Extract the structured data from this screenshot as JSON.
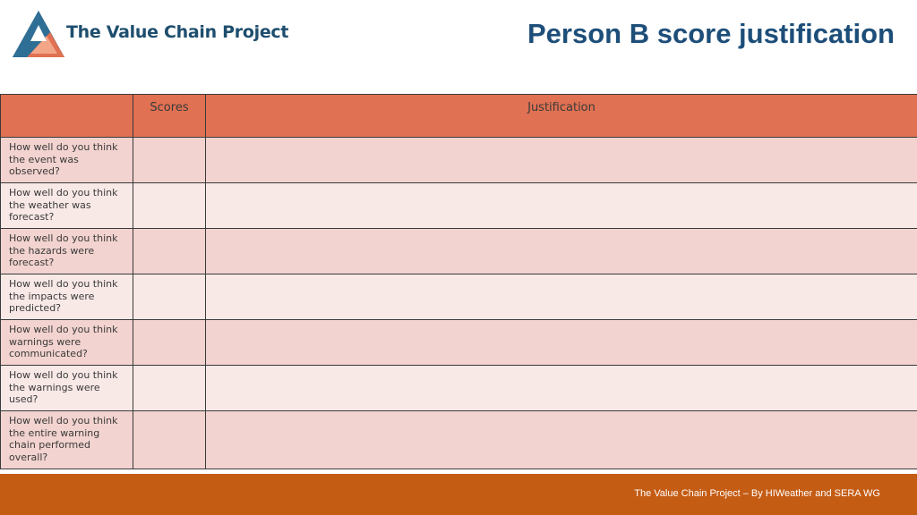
{
  "header": {
    "brand_name": "The Value Chain Project",
    "title": "Person B score justification"
  },
  "table": {
    "columns": [
      "",
      "Scores",
      "Justification"
    ],
    "rows": [
      {
        "question": "How well do you think the event was observed?",
        "score": "",
        "justification": ""
      },
      {
        "question": "How well do you think the weather was forecast?",
        "score": "",
        "justification": ""
      },
      {
        "question": "How well do you think the hazards were forecast?",
        "score": "",
        "justification": ""
      },
      {
        "question": "How well do you think the impacts were predicted?",
        "score": "",
        "justification": ""
      },
      {
        "question": "How well do you think warnings were communicated?",
        "score": "",
        "justification": ""
      },
      {
        "question": "How well do you think the warnings were used?",
        "score": "",
        "justification": ""
      },
      {
        "question": "How well do you think the entire warning chain performed overall?",
        "score": "",
        "justification": ""
      }
    ]
  },
  "footer": {
    "text": "The Value Chain Project – By HIWeather and SERA WG"
  },
  "colors": {
    "header_row": "#e07152",
    "row_dark": "#f2d3cf",
    "row_light": "#f8e9e7",
    "footer_bar": "#c45c14",
    "title": "#1d4e79",
    "brand_text": "#1e4e6e"
  },
  "icons": {
    "logo": "triangle-chain-logo-icon"
  }
}
